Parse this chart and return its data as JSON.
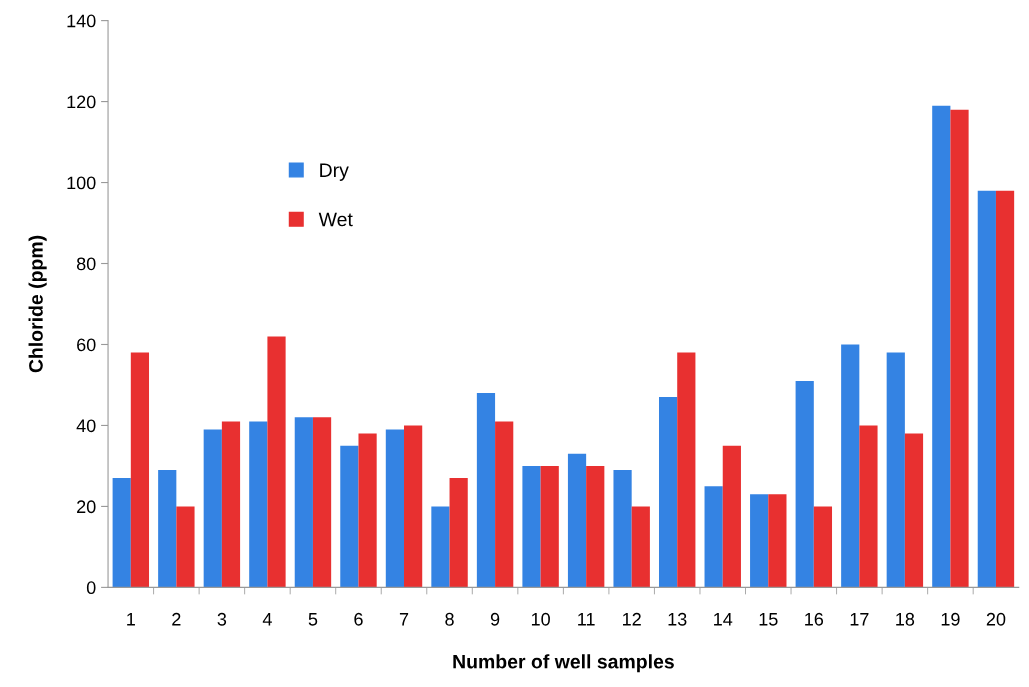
{
  "chart_data": {
    "type": "bar",
    "xlabel": "Number of well samples",
    "ylabel": "Chloride (ppm)",
    "categories": [
      "1",
      "2",
      "3",
      "4",
      "5",
      "6",
      "7",
      "8",
      "9",
      "10",
      "11",
      "12",
      "13",
      "14",
      "15",
      "16",
      "17",
      "18",
      "19",
      "20"
    ],
    "series": [
      {
        "name": "Dry",
        "color": "#3483e3",
        "values": [
          27,
          29,
          39,
          41,
          42,
          35,
          39,
          20,
          48,
          30,
          33,
          29,
          47,
          25,
          23,
          51,
          60,
          58,
          119,
          98
        ]
      },
      {
        "name": "Wet",
        "color": "#e83030",
        "values": [
          58,
          20,
          41,
          62,
          42,
          38,
          40,
          27,
          41,
          30,
          30,
          20,
          58,
          35,
          23,
          20,
          40,
          38,
          118,
          98
        ]
      }
    ],
    "ylim": [
      0,
      140
    ],
    "yticks": [
      0,
      20,
      40,
      60,
      80,
      100,
      120,
      140
    ],
    "grid": false,
    "legend": "top left"
  }
}
